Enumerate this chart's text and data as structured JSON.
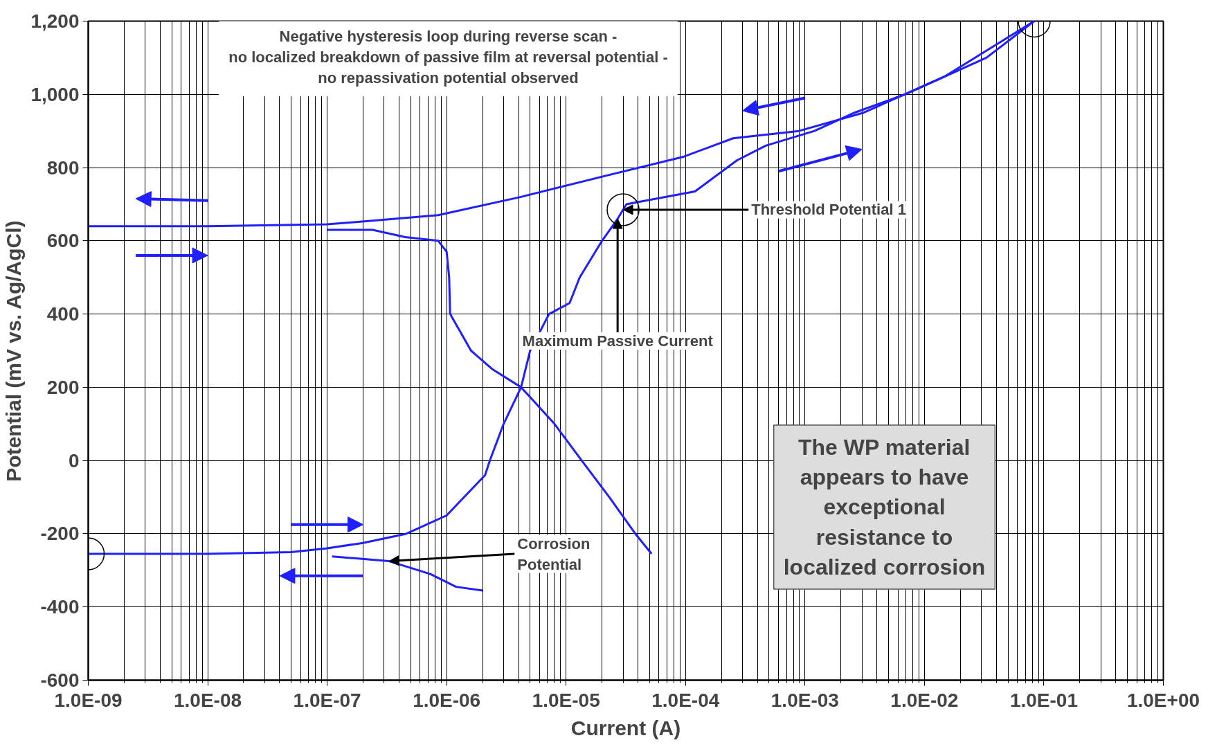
{
  "chart_data": {
    "type": "line",
    "xlabel": "Current (A)",
    "ylabel": "Potential (mV vs. Ag/AgCl)",
    "log": "x",
    "grid": true,
    "marker": "none",
    "line_style": "solid",
    "xlim": [
      1e-09,
      1
    ],
    "ylim": [
      -600,
      1200
    ],
    "xticks": [
      {
        "value": 1e-09,
        "label": "1.0E-09"
      },
      {
        "value": 1e-08,
        "label": "1.0E-08"
      },
      {
        "value": 1e-07,
        "label": "1.0E-07"
      },
      {
        "value": 1e-06,
        "label": "1.0E-06"
      },
      {
        "value": 1e-05,
        "label": "1.0E-05"
      },
      {
        "value": 0.0001,
        "label": "1.0E-04"
      },
      {
        "value": 0.001,
        "label": "1.0E-03"
      },
      {
        "value": 0.01,
        "label": "1.0E-02"
      },
      {
        "value": 0.1,
        "label": "1.0E-01"
      },
      {
        "value": 1,
        "label": "1.0E+00"
      }
    ],
    "yticks": [
      -600,
      -400,
      -200,
      0,
      200,
      400,
      600,
      800,
      {
        "value": 1000,
        "label": "1,000"
      },
      {
        "value": 1200,
        "label": "1,200"
      }
    ],
    "series": [
      {
        "color": "#1f1fff",
        "x": [
          1e-09,
          1e-08,
          5e-08,
          1e-07,
          2e-07,
          4.6e-07,
          1e-06,
          2.1e-06,
          2.3e-06,
          3e-06,
          4.2e-06,
          5e-06,
          7.2e-06,
          1.07e-05,
          1.3e-05,
          2e-05,
          2.7e-05,
          3.2e-05,
          0.00012,
          0.00027,
          0.00047,
          0.0012,
          0.0026,
          0.0069,
          0.033,
          0.083
        ],
        "values": [
          -255,
          -255,
          -250,
          -240,
          -225,
          -200,
          -150,
          -40,
          0,
          100,
          200,
          300,
          400,
          430,
          500,
          600,
          660,
          700,
          735,
          820,
          860,
          900,
          950,
          1000,
          1100,
          1200
        ]
      },
      {
        "color": "#1f1fff",
        "x": [
          0.083,
          0.015,
          0.0031,
          0.00089,
          0.00025,
          9.7e-05,
          2.3e-05,
          4.2e-06,
          8.5e-07,
          2.4e-07,
          1e-07,
          1e-08,
          1e-09
        ],
        "values": [
          1200,
          1050,
          950,
          900,
          880,
          830,
          780,
          720,
          670,
          655,
          645,
          640,
          640
        ]
      },
      {
        "color": "#1f1fff",
        "x": [
          1e-07,
          2.4e-07,
          4.5e-07,
          8.5e-07,
          1e-06,
          1.05e-06,
          1.07e-06,
          1.6e-06,
          2.4e-06,
          4.2e-06,
          8e-06,
          1.35e-05,
          2.3e-05,
          3.8e-05,
          5.2e-05
        ],
        "values": [
          630,
          630,
          610,
          600,
          570,
          500,
          400,
          300,
          250,
          200,
          100,
          0,
          -100,
          -200,
          -255
        ]
      },
      {
        "color": "#1f1fff",
        "x": [
          1.1e-07,
          3.3e-07,
          7.3e-07,
          1.2e-06,
          2e-06
        ],
        "values": [
          -262,
          -275,
          -310,
          -345,
          -355
        ]
      }
    ],
    "annotations": [
      "Negative hysteresis loop during reverse scan -\nno localized breakdown of passive film at reversal potential -\nno repassivation potential observed",
      {
        "text": "Threshold Potential 1",
        "x": 3e-05,
        "y": 685
      },
      {
        "text": "Maximum Passive Current",
        "x": 2.7e-05,
        "y": 660
      },
      {
        "text": "Corrosion\nPotential",
        "x": 3.3e-07,
        "y": -275
      },
      "The WP material\nappears to have\nexceptional\nresistance to\nlocalized corrosion"
    ]
  }
}
